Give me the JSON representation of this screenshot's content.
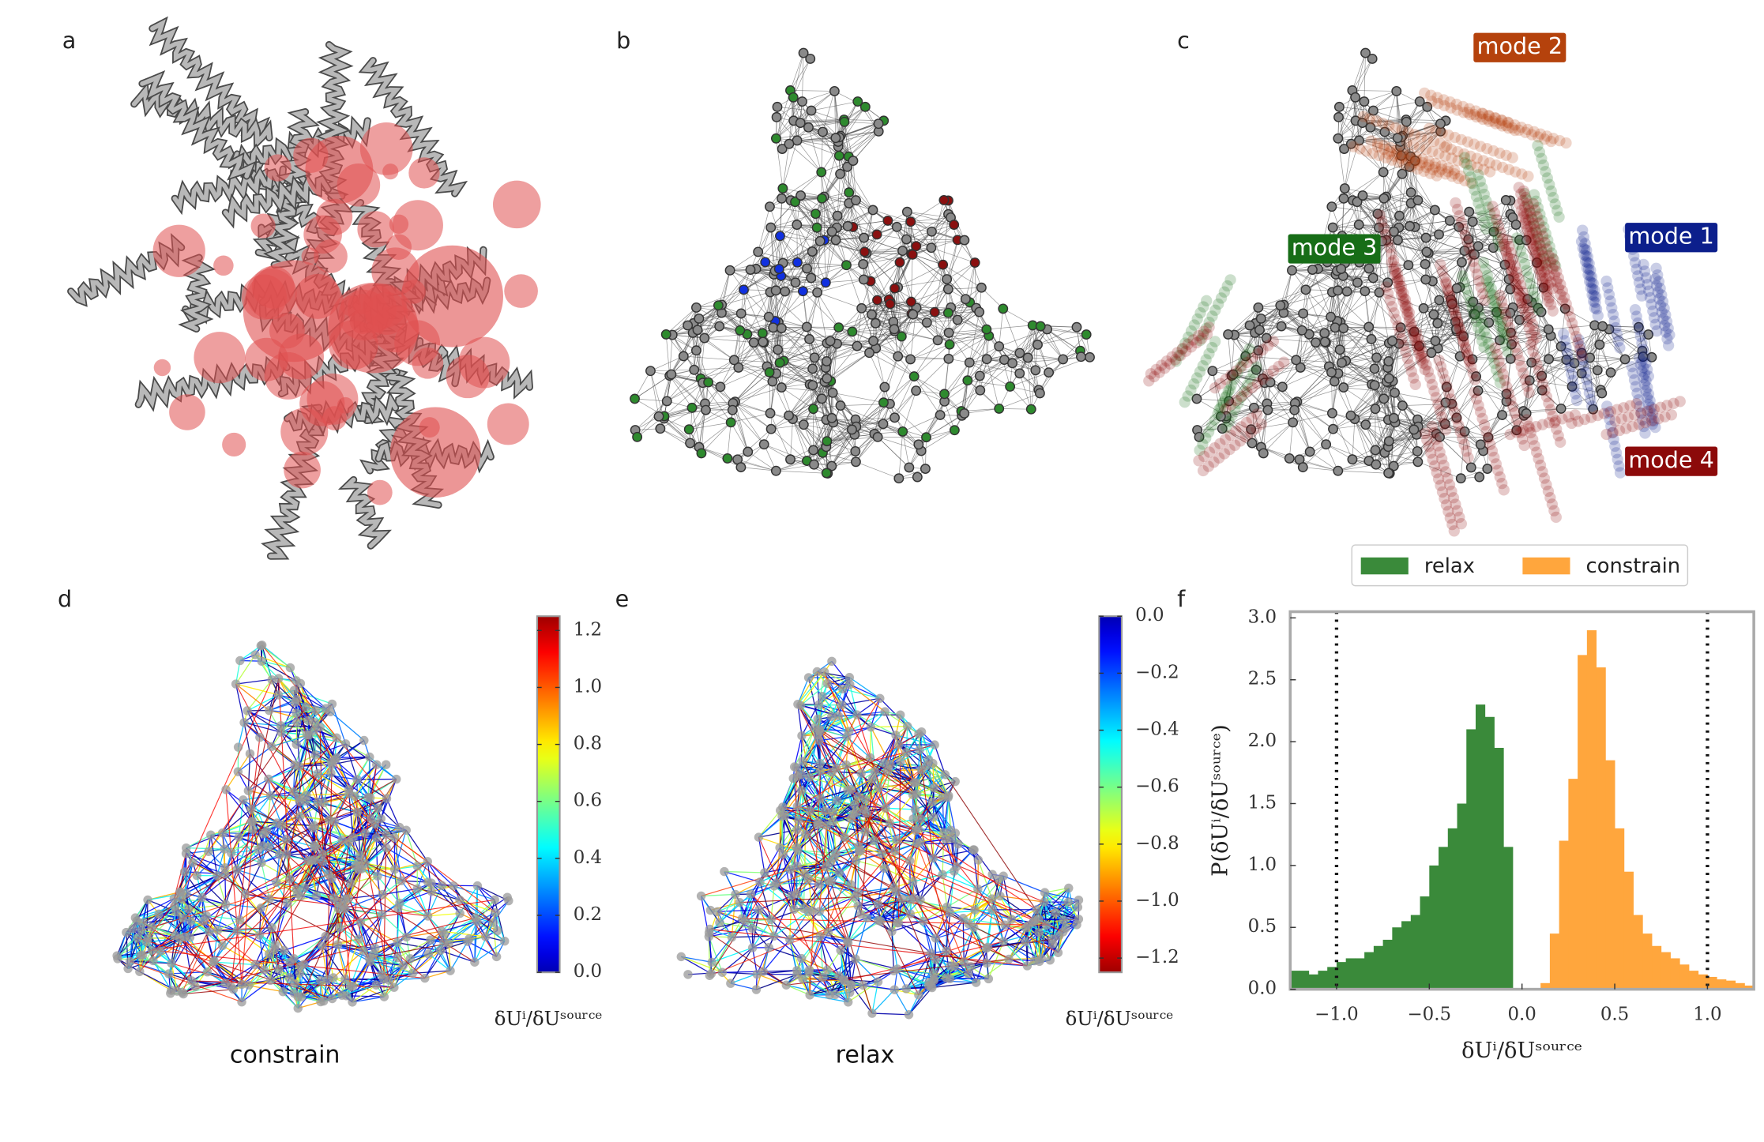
{
  "panel_labels": [
    "a",
    "b",
    "c",
    "d",
    "e",
    "f"
  ],
  "modes": [
    {
      "label": "mode 1",
      "color": "#0c1f8c"
    },
    {
      "label": "mode 2",
      "color": "#b5420c"
    },
    {
      "label": "mode 3",
      "color": "#176d17"
    },
    {
      "label": "mode 4",
      "color": "#8c0a0a"
    }
  ],
  "chart_data": [
    {
      "type": "colorbar",
      "caption": "constrain",
      "label": "δUⁱ/δUˢᵒᵘʳᶜᵉ",
      "colormap": "jet",
      "ylim": [
        0,
        1.25
      ],
      "yticks": [
        {
          "value": 0,
          "label": "0.0"
        },
        0.2,
        0.4,
        0.6,
        0.8,
        {
          "value": 1,
          "label": "1.0"
        },
        1.2
      ]
    },
    {
      "type": "colorbar",
      "caption": "relax",
      "label": "δUⁱ/δUˢᵒᵘʳᶜᵉ",
      "colormap": "jet_r",
      "ylim": [
        -1.25,
        0
      ],
      "yticks": [
        {
          "value": 0,
          "label": "0.0"
        },
        {
          "value": -0.2,
          "label": "−0.2"
        },
        {
          "value": -0.4,
          "label": "−0.4"
        },
        {
          "value": -0.6,
          "label": "−0.6"
        },
        {
          "value": -0.8,
          "label": "−0.8"
        },
        {
          "value": -1,
          "label": "−1.0"
        },
        {
          "value": -1.2,
          "label": "−1.2"
        }
      ]
    },
    {
      "type": "histogram",
      "xlabel": "δUⁱ/δUˢᵒᵘʳᶜᵉ",
      "ylabel": "P(δUⁱ/δUˢᵒᵘʳᶜᵉ)",
      "bins": [
        -1.25,
        -1.2,
        -1.15,
        -1.1,
        -1.05,
        -1,
        -0.95,
        -0.9,
        -0.85,
        -0.8,
        -0.75,
        -0.7,
        -0.65,
        -0.6,
        -0.55,
        -0.5,
        -0.45,
        -0.4,
        -0.35,
        -0.3,
        -0.25,
        -0.2,
        -0.15,
        -0.1,
        -0.05,
        0,
        0.05,
        0.1,
        0.15,
        0.2,
        0.25,
        0.3,
        0.35,
        0.4,
        0.45,
        0.5,
        0.55,
        0.6,
        0.65,
        0.7,
        0.75,
        0.8,
        0.85,
        0.9,
        0.95,
        1,
        1.05,
        1.1,
        1.15,
        1.2,
        1.25
      ],
      "series": [
        {
          "name": "relax",
          "color": "#3a8a3a",
          "values": [
            0.15,
            0.15,
            0.12,
            0.15,
            0.18,
            0.22,
            0.25,
            0.25,
            0.3,
            0.35,
            0.4,
            0.5,
            0.55,
            0.6,
            0.75,
            1.0,
            1.15,
            1.3,
            1.5,
            2.1,
            2.3,
            2.2,
            1.95,
            1.15,
            0,
            0,
            0,
            0,
            0,
            0,
            0,
            0,
            0,
            0,
            0,
            0,
            0,
            0,
            0,
            0,
            0,
            0,
            0,
            0,
            0,
            0,
            0,
            0,
            0,
            0
          ]
        },
        {
          "name": "constrain",
          "color": "#ffa63d",
          "values": [
            0,
            0,
            0,
            0,
            0,
            0,
            0,
            0,
            0,
            0,
            0,
            0,
            0,
            0,
            0,
            0,
            0,
            0,
            0,
            0,
            0,
            0,
            0,
            0,
            0,
            0,
            0,
            0.05,
            0.45,
            1.2,
            1.7,
            2.7,
            2.9,
            2.6,
            1.85,
            1.3,
            0.95,
            0.6,
            0.45,
            0.35,
            0.3,
            0.25,
            0.2,
            0.15,
            0.12,
            0.1,
            0.08,
            0.07,
            0.05,
            0.03
          ]
        }
      ],
      "xlim": [
        -1.25,
        1.25
      ],
      "ylim": [
        0,
        3.05
      ],
      "xticks": [
        {
          "value": -1,
          "label": "−1.0"
        },
        {
          "value": -0.5,
          "label": "−0.5"
        },
        {
          "value": 0,
          "label": "0.0"
        },
        0.5,
        {
          "value": 1,
          "label": "1.0"
        }
      ],
      "yticks": [
        {
          "value": 0,
          "label": "0.0"
        },
        0.5,
        {
          "value": 1,
          "label": "1.0"
        },
        1.5,
        {
          "value": 2,
          "label": "2.0"
        },
        2.5,
        {
          "value": 3,
          "label": "3.0"
        }
      ],
      "vlines": [
        -1,
        1
      ],
      "legend": "upper center"
    }
  ]
}
